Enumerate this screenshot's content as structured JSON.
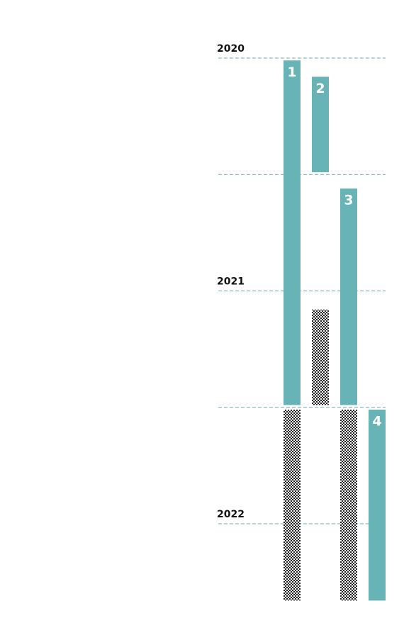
{
  "chart_data": {
    "type": "timeline",
    "ylim": [
      2020,
      2022.35
    ],
    "yticks": [
      2020,
      2021,
      2022
    ],
    "minor_yticks": [
      2020.5,
      2021.5
    ],
    "color": "#67b3b5",
    "pattern_color": "#222",
    "bars": [
      {
        "label": "1",
        "segments": [
          {
            "start": 2020.01,
            "end": 2021.49,
            "style": "solid"
          },
          {
            "start": 2021.51,
            "end": 2022.33,
            "style": "pattern"
          }
        ]
      },
      {
        "label": "2",
        "segments": [
          {
            "start": 2020.08,
            "end": 2020.49,
            "style": "solid"
          },
          {
            "start": 2021.08,
            "end": 2021.49,
            "style": "pattern"
          }
        ]
      },
      {
        "label": "3",
        "segments": [
          {
            "start": 2020.56,
            "end": 2021.49,
            "style": "solid"
          },
          {
            "start": 2021.51,
            "end": 2022.33,
            "style": "pattern"
          }
        ]
      },
      {
        "label": "4",
        "segments": [
          {
            "start": 2021.51,
            "end": 2022.33,
            "style": "solid"
          }
        ]
      }
    ]
  }
}
